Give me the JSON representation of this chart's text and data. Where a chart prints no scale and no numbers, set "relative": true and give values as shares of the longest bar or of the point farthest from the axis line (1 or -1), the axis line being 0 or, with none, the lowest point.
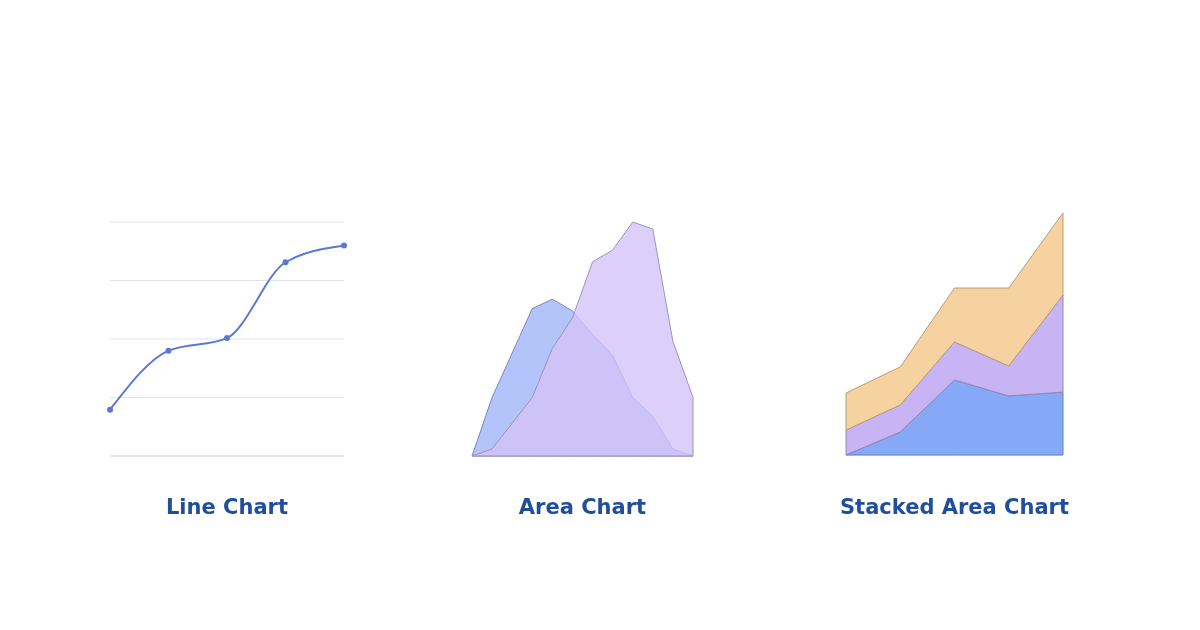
{
  "chart_data": [
    {
      "type": "line",
      "title": "Line Chart",
      "relative": true,
      "grid": true,
      "marker": "circle",
      "categories": [
        null,
        null,
        null,
        null,
        null
      ],
      "series": [
        {
          "color": "#5b78d6",
          "values": [
            0.22,
            0.5,
            0.56,
            0.92,
            1
          ]
        }
      ]
    },
    {
      "type": "area",
      "title": "Area Chart",
      "relative": true,
      "categories": [
        null,
        null,
        null,
        null,
        null,
        null,
        null,
        null,
        null,
        null,
        null,
        null
      ],
      "series": [
        {
          "color": "#9fb5f8",
          "values": [
            0,
            0.25,
            0.44,
            0.63,
            0.67,
            0.62,
            0.52,
            0.43,
            0.25,
            0.17,
            0.03,
            0
          ]
        },
        {
          "color": "#d3c3f8",
          "values": [
            0,
            0.03,
            0.14,
            0.25,
            0.46,
            0.59,
            0.83,
            0.88,
            1,
            0.97,
            0.49,
            0.25
          ]
        }
      ]
    },
    {
      "type": "area",
      "title": "Stacked Area Chart",
      "relative": true,
      "stacked": true,
      "categories": [
        null,
        null,
        null,
        null,
        null
      ],
      "series": [
        {
          "color": "#86a9f7",
          "values": [
            0,
            0.095,
            0.31,
            0.244,
            0.26
          ]
        },
        {
          "color": "#c8b3f5",
          "values": [
            0.103,
            0.112,
            0.157,
            0.124,
            0.401
          ]
        },
        {
          "color": "#f5d2a0",
          "values": [
            0.153,
            0.157,
            0.223,
            0.322,
            0.339
          ]
        }
      ]
    }
  ]
}
